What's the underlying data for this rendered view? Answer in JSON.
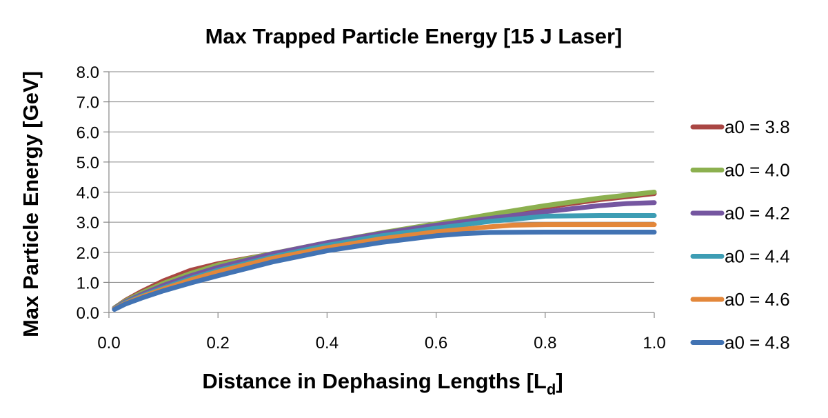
{
  "chart_data": {
    "type": "line",
    "title": "Max Trapped Particle Energy [15 J Laser]",
    "xlabel": "Distance in Dephasing Lengths [L",
    "xlabel_subscript": "d",
    "xlabel_suffix": "]",
    "ylabel": "Max Particle Energy [GeV]",
    "xlim": [
      0.0,
      1.0
    ],
    "ylim": [
      0.0,
      8.0
    ],
    "x_ticks": [
      "0.0",
      "0.2",
      "0.4",
      "0.6",
      "0.8",
      "1.0"
    ],
    "x_tick_values": [
      0.0,
      0.2,
      0.4,
      0.6,
      0.8,
      1.0
    ],
    "y_ticks": [
      "0.0",
      "1.0",
      "2.0",
      "3.0",
      "4.0",
      "5.0",
      "6.0",
      "7.0",
      "8.0"
    ],
    "y_tick_values": [
      0,
      1,
      2,
      3,
      4,
      5,
      6,
      7,
      8
    ],
    "grid": "horizontal",
    "legend_position": "right",
    "series": [
      {
        "name": "a0 = 3.8",
        "color": "#a94643",
        "x": [
          0.01,
          0.03,
          0.06,
          0.1,
          0.15,
          0.2,
          0.3,
          0.4,
          0.5,
          0.6,
          0.7,
          0.8,
          0.9,
          1.0
        ],
        "values": [
          0.15,
          0.4,
          0.7,
          1.05,
          1.4,
          1.62,
          1.95,
          2.3,
          2.62,
          2.92,
          3.22,
          3.5,
          3.75,
          3.95
        ]
      },
      {
        "name": "a0 = 4.0",
        "color": "#8cb04f",
        "x": [
          0.01,
          0.03,
          0.06,
          0.1,
          0.15,
          0.2,
          0.3,
          0.4,
          0.5,
          0.6,
          0.7,
          0.8,
          0.9,
          1.0
        ],
        "values": [
          0.15,
          0.38,
          0.65,
          0.97,
          1.3,
          1.58,
          1.96,
          2.32,
          2.65,
          2.95,
          3.26,
          3.55,
          3.8,
          4.0
        ]
      },
      {
        "name": "a0 = 4.2",
        "color": "#7556a0",
        "x": [
          0.01,
          0.03,
          0.06,
          0.1,
          0.15,
          0.2,
          0.3,
          0.4,
          0.5,
          0.6,
          0.7,
          0.8,
          0.9,
          0.95,
          1.0
        ],
        "values": [
          0.14,
          0.35,
          0.6,
          0.9,
          1.22,
          1.5,
          1.95,
          2.32,
          2.63,
          2.9,
          3.13,
          3.35,
          3.55,
          3.62,
          3.65
        ]
      },
      {
        "name": "a0 = 4.4",
        "color": "#3d9db4",
        "x": [
          0.01,
          0.03,
          0.06,
          0.1,
          0.15,
          0.2,
          0.3,
          0.4,
          0.5,
          0.6,
          0.7,
          0.76,
          0.8,
          0.9,
          1.0
        ],
        "values": [
          0.13,
          0.32,
          0.55,
          0.82,
          1.13,
          1.4,
          1.85,
          2.23,
          2.55,
          2.8,
          3.03,
          3.13,
          3.2,
          3.22,
          3.22
        ]
      },
      {
        "name": "a0 = 4.6",
        "color": "#e3873a",
        "x": [
          0.01,
          0.03,
          0.06,
          0.1,
          0.15,
          0.2,
          0.3,
          0.4,
          0.5,
          0.6,
          0.7,
          0.74,
          0.8,
          0.9,
          1.0
        ],
        "values": [
          0.12,
          0.3,
          0.52,
          0.78,
          1.08,
          1.35,
          1.8,
          2.15,
          2.45,
          2.68,
          2.85,
          2.9,
          2.92,
          2.92,
          2.92
        ]
      },
      {
        "name": "a0 = 4.8",
        "color": "#4273b3",
        "x": [
          0.01,
          0.03,
          0.06,
          0.1,
          0.15,
          0.2,
          0.3,
          0.4,
          0.5,
          0.6,
          0.65,
          0.7,
          0.8,
          0.9,
          1.0
        ],
        "values": [
          0.1,
          0.28,
          0.48,
          0.72,
          0.98,
          1.22,
          1.68,
          2.05,
          2.33,
          2.55,
          2.62,
          2.66,
          2.67,
          2.67,
          2.67
        ]
      }
    ]
  }
}
